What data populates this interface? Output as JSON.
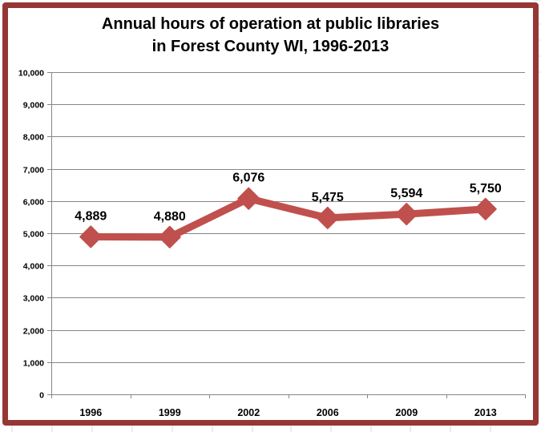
{
  "chart_data": {
    "type": "line",
    "title": "Annual hours of operation at public libraries in Forest County WI, 1996-2013",
    "title_lines": [
      "Annual hours of operation at public libraries",
      "in Forest County WI, 1996-2013"
    ],
    "categories": [
      "1996",
      "1999",
      "2002",
      "2006",
      "2009",
      "2013"
    ],
    "series": [
      {
        "name": "Annual hours of operation",
        "values": [
          4889,
          4880,
          6076,
          5475,
          5594,
          5750
        ],
        "labels": [
          "4,889",
          "4,880",
          "6,076",
          "5,475",
          "5,594",
          "5,750"
        ]
      }
    ],
    "xlabel": "",
    "ylabel": "",
    "ylim": [
      0,
      10000
    ],
    "yticks": [
      "0",
      "1,000",
      "2,000",
      "3,000",
      "4,000",
      "5,000",
      "6,000",
      "7,000",
      "8,000",
      "9,000",
      "10,000"
    ],
    "grid": true,
    "legend": "none",
    "colors": {
      "line": "#C0504D",
      "frame": "#953735",
      "grid": "#868686"
    }
  }
}
